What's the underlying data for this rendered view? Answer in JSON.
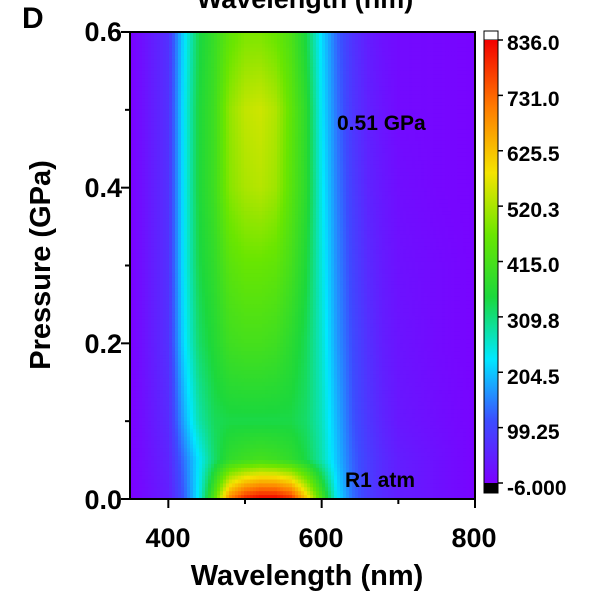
{
  "panel_label": "D",
  "chart_data": {
    "type": "heatmap",
    "title": "Wavelength (nm)",
    "xlabel": "Wavelength (nm)",
    "ylabel": "Pressure (GPa)",
    "xlim": [
      350,
      800
    ],
    "ylim": [
      0.0,
      0.6
    ],
    "x_ticks": [
      "400",
      "600",
      "800"
    ],
    "y_ticks": [
      "0.0",
      "0.2",
      "0.4",
      "0.6"
    ],
    "x_values": [
      350,
      400,
      420,
      440,
      460,
      480,
      500,
      520,
      540,
      560,
      580,
      600,
      620,
      640,
      660,
      680,
      700,
      750,
      800
    ],
    "y_values": [
      0.0,
      0.05,
      0.1,
      0.2,
      0.3,
      0.4,
      0.5,
      0.6
    ],
    "z": [
      [
        -6,
        40,
        120,
        240,
        440,
        700,
        800,
        836,
        836,
        790,
        620,
        420,
        230,
        140,
        90,
        60,
        40,
        20,
        0
      ],
      [
        -6,
        50,
        140,
        230,
        320,
        380,
        400,
        410,
        400,
        380,
        340,
        280,
        200,
        130,
        90,
        60,
        40,
        20,
        0
      ],
      [
        -6,
        60,
        180,
        280,
        330,
        340,
        340,
        340,
        340,
        340,
        320,
        270,
        190,
        120,
        80,
        50,
        30,
        15,
        0
      ],
      [
        -6,
        70,
        220,
        320,
        360,
        400,
        410,
        410,
        400,
        370,
        330,
        260,
        170,
        110,
        70,
        40,
        25,
        10,
        0
      ],
      [
        -6,
        70,
        230,
        340,
        380,
        440,
        460,
        460,
        450,
        410,
        350,
        250,
        160,
        100,
        60,
        35,
        20,
        10,
        0
      ],
      [
        -6,
        70,
        230,
        350,
        400,
        490,
        520,
        530,
        510,
        440,
        370,
        240,
        150,
        90,
        50,
        30,
        15,
        5,
        0
      ],
      [
        -6,
        70,
        230,
        350,
        400,
        500,
        540,
        550,
        525,
        450,
        370,
        230,
        140,
        80,
        45,
        25,
        10,
        5,
        0
      ],
      [
        -6,
        70,
        220,
        340,
        390,
        450,
        480,
        480,
        460,
        420,
        340,
        220,
        130,
        75,
        40,
        20,
        10,
        5,
        0
      ]
    ],
    "zlim": [
      -6.0,
      836.0
    ],
    "colorbar_ticks": [
      "836.0",
      "731.0",
      "625.5",
      "520.3",
      "415.0",
      "309.8",
      "204.5",
      "99.25",
      "-6.000"
    ],
    "annotations": [
      "0.51 GPa",
      "R1 atm"
    ],
    "grid": false
  }
}
